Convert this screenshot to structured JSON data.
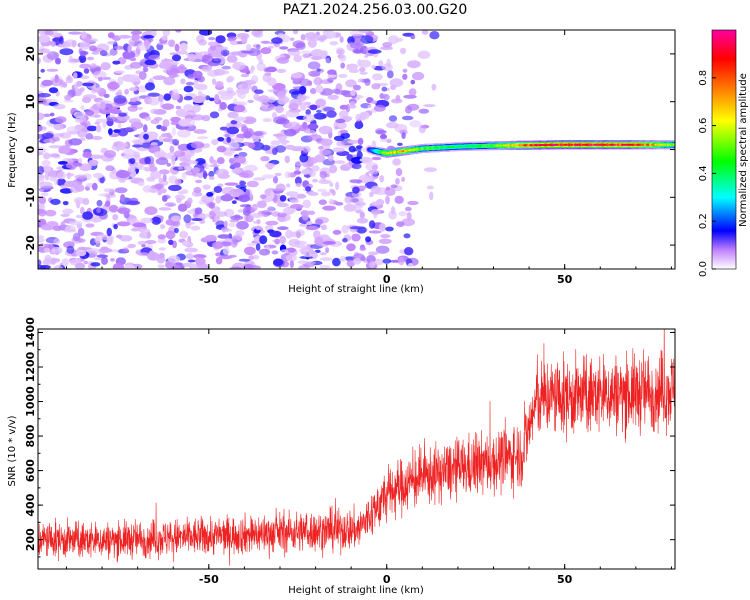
{
  "title": "PAZ1.2024.256.03.00.G20",
  "chart_data": [
    {
      "type": "heatmap",
      "xlabel": "Height of straight line (km)",
      "ylabel": "Frequency (Hz)",
      "xlim": [
        -98,
        81
      ],
      "ylim": [
        -25,
        25
      ],
      "x_ticks": [
        "-50",
        "0",
        "50"
      ],
      "y_ticks": [
        "20",
        "10",
        "0",
        "-10",
        "-20"
      ],
      "colorbar": {
        "label": "Normalized spectral amplitude",
        "range": [
          0,
          1
        ],
        "ticks": [
          "0.0",
          "0.2",
          "0.4",
          "0.6",
          "0.8"
        ],
        "colors": [
          "#ffffff",
          "#c080ff",
          "#0000ff",
          "#00ffff",
          "#00ff00",
          "#ffff00",
          "#ff8000",
          "#ff0000",
          "#ff00a0"
        ]
      },
      "ridge": {
        "description_x_start": -5,
        "x": [
          -5,
          0,
          5,
          10,
          20,
          30,
          40,
          50,
          60,
          70,
          81
        ],
        "frequency": [
          0.0,
          -0.8,
          -0.3,
          0.2,
          0.6,
          0.8,
          0.9,
          1.0,
          1.0,
          1.0,
          1.0
        ],
        "amplitude": [
          0.15,
          0.6,
          0.7,
          0.5,
          0.4,
          0.5,
          0.85,
          0.9,
          0.9,
          0.85,
          0.5
        ]
      },
      "noise_region": {
        "x_from": -98,
        "x_to": -8,
        "x_fade_to": 15
      }
    },
    {
      "type": "line",
      "xlabel": "Height of straight line (km)",
      "ylabel": "SNR (10 * v/v)",
      "xlim": [
        -98,
        81
      ],
      "ylim": [
        30,
        1420
      ],
      "x_ticks": [
        "-50",
        "0",
        "50"
      ],
      "y_ticks": [
        "1400",
        "1200",
        "1000",
        "800",
        "600",
        "400",
        "200"
      ],
      "color": "#ee2222",
      "series": [
        {
          "x": [
            -98,
            -80,
            -60,
            -40,
            -20,
            -8,
            -5,
            0,
            5,
            10,
            20,
            30,
            38,
            42,
            45,
            50,
            60,
            70,
            81
          ],
          "mean": [
            200,
            195,
            210,
            230,
            250,
            260,
            330,
            460,
            520,
            560,
            610,
            650,
            700,
            1000,
            1030,
            1020,
            1040,
            1050,
            1070
          ],
          "spread": [
            120,
            115,
            120,
            125,
            130,
            135,
            150,
            170,
            180,
            180,
            190,
            200,
            210,
            240,
            250,
            250,
            250,
            250,
            250
          ]
        }
      ]
    }
  ]
}
